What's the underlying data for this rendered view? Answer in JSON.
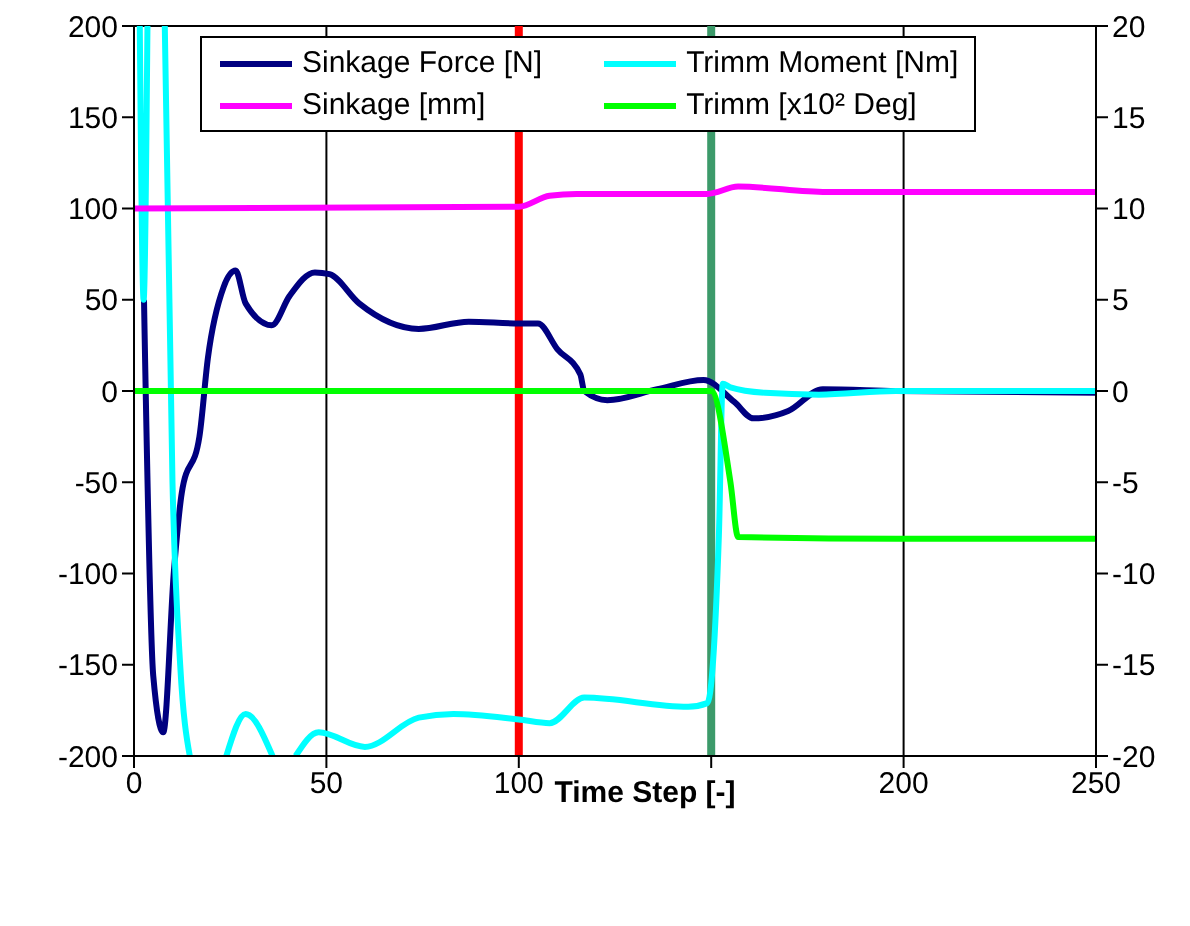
{
  "chart_data": {
    "type": "line",
    "xlabel": "Time Step [-]",
    "xlim": [
      0,
      250
    ],
    "xticks": [
      0,
      50,
      100,
      {
        "value": 150,
        "label": null
      },
      200,
      250
    ],
    "ylim": [
      -200,
      200
    ],
    "yticks": [
      -200,
      -150,
      -100,
      -50,
      0,
      50,
      100,
      150,
      200
    ],
    "y2lim": [
      -20,
      20
    ],
    "y2ticks": [
      -20,
      -15,
      -10,
      -5,
      0,
      5,
      10,
      15,
      20
    ],
    "grid": true,
    "legend": "top",
    "line_style": "solid",
    "marker": "none",
    "series": [
      {
        "name": "Sinkage Force [N]",
        "color": "#000080",
        "x": [
          2.6,
          5,
          7.6,
          10.4,
          12.4,
          17,
          19.2,
          23.3,
          26.4,
          29,
          35.8,
          40.4,
          47,
          50.8,
          58.5,
          74,
          87,
          100,
          105,
          110,
          116,
          117,
          123,
          136,
          148,
          156,
          161,
          170,
          179,
          198,
          250
        ],
        "values": [
          50,
          -156,
          -187,
          -98,
          -56,
          -25,
          18,
          57,
          66,
          48,
          36,
          52,
          65,
          64,
          48,
          34,
          38,
          37,
          37,
          23,
          9,
          0,
          -5,
          1,
          6,
          -6,
          -15,
          -11,
          1,
          0,
          -1
        ]
      },
      {
        "name": "Trimm Moment [Nm]",
        "color": "#00ffff",
        "x": [
          1.5,
          2.5,
          3.5,
          5,
          8,
          10,
          12,
          14.5,
          20,
          24,
          29,
          36,
          39,
          42,
          48,
          60,
          74,
          83,
          100,
          108,
          117,
          144,
          149,
          152,
          153,
          155,
          164,
          178,
          198,
          250
        ],
        "values": [
          200,
          50,
          200,
          null,
          200,
          -50,
          -150,
          -200,
          null,
          -200,
          -177,
          -200,
          null,
          -200,
          -187,
          -195,
          -179,
          -177,
          -180,
          -182,
          -168,
          -173,
          -171,
          -79,
          4,
          2,
          -1,
          -2,
          0,
          0
        ]
      },
      {
        "name": "Sinkage [mm]",
        "color": "#ff00ff",
        "x": [
          0,
          100,
          108,
          115,
          149,
          157,
          180,
          250
        ],
        "values": [
          100,
          101,
          107,
          108,
          108,
          112,
          109,
          109
        ]
      },
      {
        "name": "Trimm [x10² Deg]",
        "color": "#00ff00",
        "x": [
          0,
          150,
          155,
          157,
          198,
          250
        ],
        "values": [
          0,
          0,
          -50,
          -80,
          -81,
          -81
        ]
      }
    ],
    "ref_lines": [
      {
        "axis": "x",
        "value": 100,
        "color": "#ff0000"
      },
      {
        "axis": "x",
        "value": 150,
        "color": "#3c9a6a"
      }
    ]
  }
}
